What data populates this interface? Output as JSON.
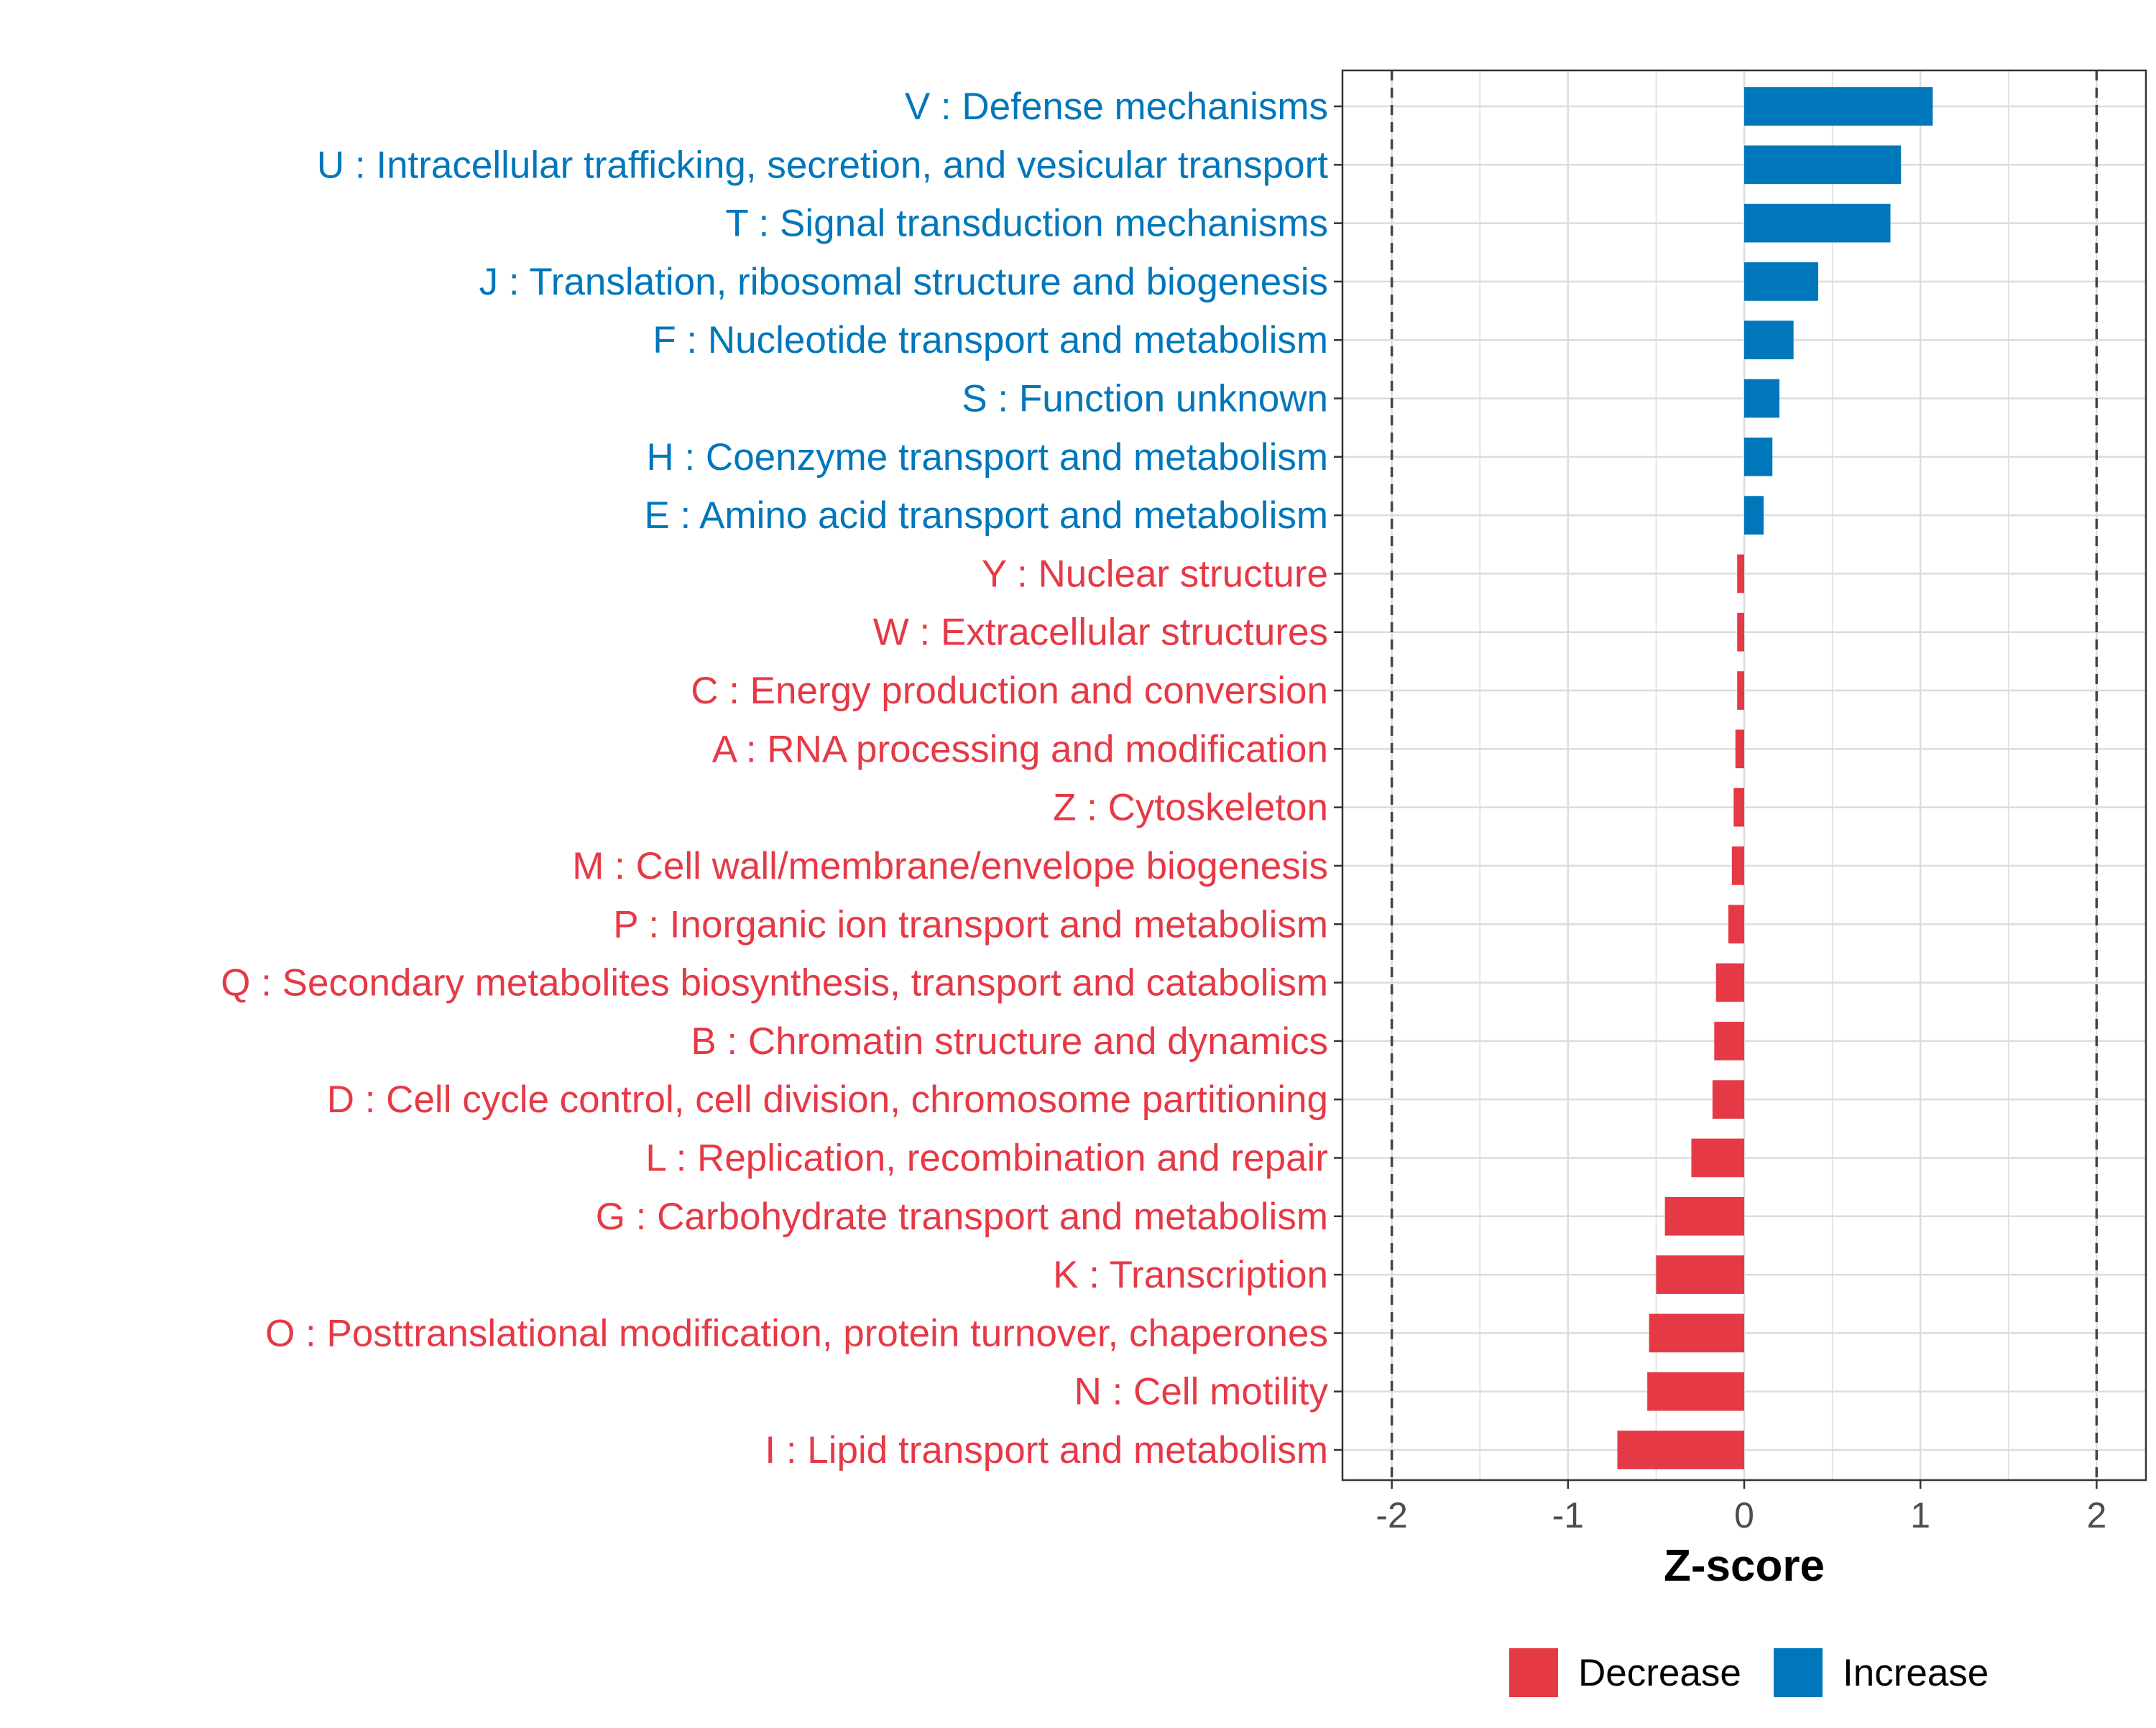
{
  "chart_data": {
    "type": "bar",
    "orientation": "horizontal",
    "xlabel": "Z-score",
    "ylabel": "",
    "xlim": [
      -2.28,
      2.28
    ],
    "xticks": [
      -2,
      -1,
      0,
      1,
      2
    ],
    "xtick_labels": [
      "-2",
      "-1",
      "0",
      "1",
      "2"
    ],
    "reference_lines": [
      -2,
      2
    ],
    "grid": true,
    "legend_placement": "bottom",
    "colors": {
      "Increase": "#0077BB",
      "Decrease": "#E63946"
    },
    "categories": [
      "V : Defense mechanisms",
      "U : Intracellular trafficking, secretion, and vesicular transport",
      "T : Signal transduction mechanisms",
      "J : Translation, ribosomal structure and biogenesis",
      "F : Nucleotide transport and metabolism",
      "S : Function unknown",
      "H : Coenzyme transport and metabolism",
      "E : Amino acid transport and metabolism",
      "Y : Nuclear structure",
      "W : Extracellular structures",
      "C : Energy production and conversion",
      "A : RNA processing and modification",
      "Z : Cytoskeleton",
      "M : Cell wall/membrane/envelope biogenesis",
      "P : Inorganic ion transport and metabolism",
      "Q : Secondary metabolites biosynthesis, transport and catabolism",
      "B : Chromatin structure and dynamics",
      "D : Cell cycle control, cell division, chromosome partitioning",
      "L : Replication, recombination and repair",
      "G : Carbohydrate transport and metabolism",
      "K : Transcription",
      "O : Posttranslational modification, protein turnover, chaperones",
      "N : Cell motility",
      "I : Lipid transport and metabolism"
    ],
    "values": [
      1.07,
      0.89,
      0.83,
      0.42,
      0.28,
      0.2,
      0.16,
      0.11,
      -0.04,
      -0.04,
      -0.04,
      -0.05,
      -0.06,
      -0.07,
      -0.09,
      -0.16,
      -0.17,
      -0.18,
      -0.3,
      -0.45,
      -0.5,
      -0.54,
      -0.55,
      -0.72
    ],
    "groups": [
      "Increase",
      "Increase",
      "Increase",
      "Increase",
      "Increase",
      "Increase",
      "Increase",
      "Increase",
      "Decrease",
      "Decrease",
      "Decrease",
      "Decrease",
      "Decrease",
      "Decrease",
      "Decrease",
      "Decrease",
      "Decrease",
      "Decrease",
      "Decrease",
      "Decrease",
      "Decrease",
      "Decrease",
      "Decrease",
      "Decrease"
    ],
    "legend": [
      {
        "label": "Decrease",
        "color": "#E63946"
      },
      {
        "label": "Increase",
        "color": "#0077BB"
      }
    ]
  }
}
